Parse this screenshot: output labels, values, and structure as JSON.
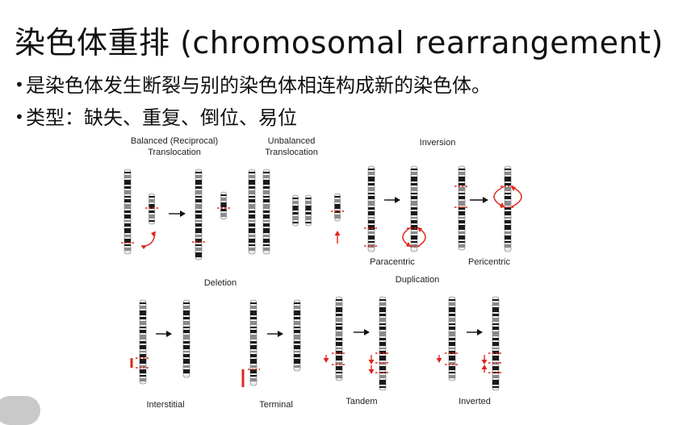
{
  "slide": {
    "title": "染色体重排 (chromosomal rearrangement)",
    "bullets": [
      "是染色体发生断裂与别的染色体相连构成新的染色体。",
      "类型：缺失、重复、倒位、易位"
    ]
  },
  "figure": {
    "balanced_line1": "Balanced (Reciprocal)",
    "balanced_line2": "Translocation",
    "unbalanced_line1": "Unbalanced",
    "unbalanced_line2": "Translocation",
    "inversion": "Inversion",
    "paracentric": "Paracentric",
    "pericentric": "Pericentric",
    "deletion": "Deletion",
    "duplication": "Duplication",
    "interstitial": "Interstitial",
    "terminal": "Terminal",
    "tandem": "Tandem",
    "inverted": "Inverted",
    "colors": {
      "marker": "#e0261b",
      "band": "#1a1a1a",
      "arrow": "#111111"
    }
  }
}
